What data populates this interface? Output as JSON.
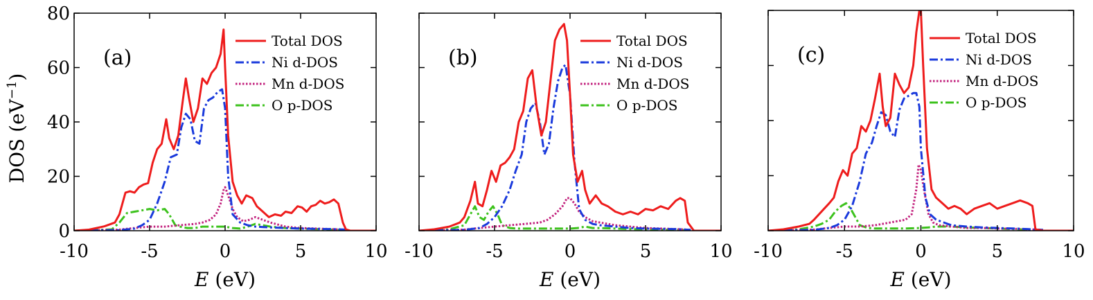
{
  "figure": {
    "y_axis_title_main": "DOS (eV",
    "y_axis_title_sup": "−1",
    "y_axis_title_end": ")"
  },
  "chart_data": [
    {
      "type": "line",
      "panel_label": "(a)",
      "xlabel_var": "E",
      "xlabel_unit": " (eV)",
      "ylabel": "DOS (eV−1)",
      "xlim": [
        -10,
        10
      ],
      "ylim": [
        0,
        80
      ],
      "xticks": [
        -10,
        -5,
        0,
        5,
        10
      ],
      "xtick_labels": [
        "-10",
        "-5",
        "0",
        "5",
        "10"
      ],
      "yticks": [
        0,
        20,
        40,
        60,
        80
      ],
      "ytick_labels": [
        "0",
        "20",
        "40",
        "60",
        "80"
      ],
      "series": [
        {
          "name": "Total DOS",
          "color": "#ee1c1c",
          "dash": "solid",
          "x": [
            -10,
            -9,
            -8,
            -7.3,
            -7,
            -6.6,
            -6.3,
            -6,
            -5.7,
            -5.4,
            -5.1,
            -4.8,
            -4.5,
            -4.2,
            -3.9,
            -3.7,
            -3.4,
            -3.1,
            -2.8,
            -2.6,
            -2.4,
            -2.1,
            -1.8,
            -1.5,
            -1.2,
            -0.9,
            -0.6,
            -0.3,
            -0.1,
            0,
            0.2,
            0.5,
            0.8,
            1.1,
            1.4,
            1.8,
            2.1,
            2.5,
            2.9,
            3.3,
            3.7,
            4,
            4.4,
            4.8,
            5.1,
            5.4,
            5.7,
            6,
            6.3,
            6.6,
            6.9,
            7.2,
            7.5,
            7.8,
            8,
            8.3,
            9,
            10
          ],
          "y": [
            0,
            0.4,
            1.6,
            3,
            6,
            14,
            14.5,
            14,
            16,
            17,
            17.5,
            25,
            30,
            32,
            41,
            34,
            30,
            35,
            48,
            56,
            49,
            40,
            45,
            56,
            54,
            58,
            60,
            65,
            74,
            60,
            35,
            18,
            13,
            10,
            13,
            12,
            9,
            7,
            5,
            6,
            5.5,
            7,
            6.5,
            9,
            8.5,
            7,
            9,
            9.5,
            11,
            10,
            10.5,
            11.5,
            10,
            3,
            0.5,
            0,
            0,
            0
          ]
        },
        {
          "name": "Ni d-DOS",
          "color": "#1a3adc",
          "dash": "dashdot",
          "x": [
            -10,
            -7,
            -6,
            -5.5,
            -5,
            -4.5,
            -4,
            -3.6,
            -3.2,
            -2.9,
            -2.6,
            -2.3,
            -2,
            -1.7,
            -1.4,
            -1.1,
            -0.8,
            -0.5,
            -0.2,
            0,
            0.2,
            0.5,
            1,
            1.5,
            2,
            3,
            4,
            5,
            6,
            7,
            8
          ],
          "y": [
            0,
            0.2,
            0.8,
            2,
            4,
            10,
            18,
            27,
            28,
            38,
            43,
            41,
            33,
            32,
            45,
            48,
            49,
            51,
            52,
            45,
            20,
            6,
            3,
            2,
            1.5,
            1.2,
            1,
            0.8,
            0.7,
            0.6,
            0.4
          ]
        },
        {
          "name": "Mn d-DOS",
          "color": "#c2217d",
          "dash": "dotted",
          "x": [
            -10,
            -7,
            -6,
            -5,
            -4,
            -3,
            -2,
            -1.5,
            -1,
            -0.6,
            -0.3,
            -0.1,
            0,
            0.2,
            0.5,
            0.8,
            1.2,
            1.6,
            2,
            2.5,
            3,
            4,
            5,
            6,
            7,
            8
          ],
          "y": [
            0,
            0.4,
            1,
            1.5,
            1.5,
            2,
            2.5,
            3,
            4,
            6,
            10,
            15,
            16,
            13,
            8,
            5,
            3.5,
            4,
            5,
            4,
            3,
            1.5,
            1,
            0.8,
            0.6,
            0.3
          ]
        },
        {
          "name": "O p-DOS",
          "color": "#3cc21c",
          "dash": "dashdot",
          "x": [
            -10,
            -7.5,
            -7,
            -6.5,
            -6,
            -5.5,
            -5,
            -4.5,
            -4,
            -3.7,
            -3.3,
            -3,
            -2.5,
            -2,
            -1.5,
            -1,
            -0.5,
            0,
            0.5,
            1,
            1.5,
            2,
            2.5,
            3,
            4,
            5,
            6,
            7,
            8
          ],
          "y": [
            0,
            0.5,
            3,
            6.5,
            7,
            7.5,
            8,
            7.5,
            8,
            6,
            2,
            1.5,
            1,
            1,
            1.5,
            1.5,
            1.5,
            1.5,
            1,
            0.8,
            1.5,
            2.5,
            2,
            1.5,
            1,
            0.8,
            0.6,
            0.4,
            0.2
          ]
        }
      ]
    },
    {
      "type": "line",
      "panel_label": "(b)",
      "xlabel_var": "E",
      "xlabel_unit": " (eV)",
      "ylabel": "",
      "xlim": [
        -10,
        10
      ],
      "ylim": [
        0,
        80
      ],
      "xticks": [
        -10,
        -5,
        0,
        5,
        10
      ],
      "xtick_labels": [
        "-10",
        "-5",
        "0",
        "5",
        "10"
      ],
      "yticks": [
        0,
        20,
        40,
        60,
        80
      ],
      "ytick_labels": [],
      "series": [
        {
          "name": "Total DOS",
          "color": "#ee1c1c",
          "dash": "solid",
          "x": [
            -10,
            -9,
            -8,
            -7.3,
            -7,
            -6.6,
            -6.3,
            -6.1,
            -5.8,
            -5.5,
            -5.2,
            -4.9,
            -4.6,
            -4.3,
            -4,
            -3.7,
            -3.4,
            -3.1,
            -2.8,
            -2.5,
            -2.2,
            -1.9,
            -1.6,
            -1.3,
            -1,
            -0.7,
            -0.4,
            -0.2,
            0,
            0.2,
            0.5,
            0.8,
            1,
            1.3,
            1.7,
            2.1,
            2.5,
            3,
            3.5,
            4,
            4.5,
            5,
            5.5,
            6,
            6.5,
            7,
            7.3,
            7.6,
            7.8,
            8.2,
            9,
            10
          ],
          "y": [
            0,
            0.5,
            1.5,
            3,
            5,
            11,
            18,
            10,
            9,
            15,
            22,
            18,
            24,
            25,
            27,
            30,
            40,
            44,
            56,
            59,
            45,
            35,
            40,
            55,
            70,
            74,
            76,
            70,
            50,
            28,
            18,
            22,
            15,
            10,
            13,
            10,
            9,
            7,
            6,
            7,
            6,
            8,
            7.5,
            9,
            8,
            11,
            12,
            11,
            3,
            0,
            0,
            0
          ]
        },
        {
          "name": "Ni d-DOS",
          "color": "#1a3adc",
          "dash": "dashdot",
          "x": [
            -10,
            -7,
            -6,
            -5.5,
            -5,
            -4.5,
            -4,
            -3.6,
            -3.2,
            -2.9,
            -2.6,
            -2.3,
            -2,
            -1.7,
            -1.4,
            -1.1,
            -0.8,
            -0.5,
            -0.3,
            0,
            0.3,
            0.6,
            1,
            1.5,
            2,
            3,
            4,
            5,
            6,
            7,
            8
          ],
          "y": [
            0,
            0.3,
            1,
            2.5,
            5,
            9,
            15,
            22,
            28,
            40,
            45,
            47,
            40,
            28,
            32,
            45,
            55,
            60,
            61,
            50,
            25,
            8,
            4,
            2.5,
            2,
            1.5,
            1,
            0.8,
            0.7,
            0.6,
            0.3
          ]
        },
        {
          "name": "Mn d-DOS",
          "color": "#c2217d",
          "dash": "dotted",
          "x": [
            -10,
            -7,
            -6,
            -5,
            -4,
            -3,
            -2,
            -1.5,
            -1,
            -0.5,
            -0.2,
            0,
            0.3,
            0.6,
            1,
            1.5,
            2,
            3,
            4,
            5,
            6,
            7,
            8
          ],
          "y": [
            0,
            0.4,
            1,
            1.5,
            2,
            2.5,
            3,
            4,
            6,
            9,
            12,
            12,
            10,
            7,
            5,
            3.5,
            3,
            2,
            1.5,
            1,
            0.8,
            0.6,
            0.3
          ]
        },
        {
          "name": "O p-DOS",
          "color": "#3cc21c",
          "dash": "dashdot",
          "x": [
            -10,
            -8,
            -7,
            -6.6,
            -6.3,
            -6,
            -5.7,
            -5.4,
            -5.1,
            -4.8,
            -4.5,
            -4,
            -3.5,
            -3,
            -2,
            -1,
            0,
            0.5,
            1,
            1.5,
            2,
            3,
            4,
            5,
            6,
            7,
            8
          ],
          "y": [
            0,
            0.5,
            2,
            6,
            9,
            5,
            4,
            7,
            9,
            6,
            2,
            1,
            0.8,
            0.8,
            0.8,
            0.8,
            0.8,
            1,
            1.5,
            1,
            1,
            0.8,
            0.6,
            0.5,
            0.4,
            0.3,
            0.2
          ]
        }
      ]
    },
    {
      "type": "line",
      "panel_label": "(c)",
      "xlabel_var": "E",
      "xlabel_unit": " (eV)",
      "ylabel": "",
      "xlim": [
        -10,
        10
      ],
      "ylim": [
        0,
        80
      ],
      "xticks": [
        -10,
        -5,
        0,
        5,
        10
      ],
      "xtick_labels": [
        "-10",
        "-5",
        "0",
        "5",
        "10"
      ],
      "yticks": [
        0,
        20,
        40,
        60,
        80
      ],
      "ytick_labels": [],
      "series": [
        {
          "name": "Total DOS",
          "color": "#ee1c1c",
          "dash": "solid",
          "x": [
            -10,
            -9,
            -8,
            -7.3,
            -7,
            -6.5,
            -6,
            -5.7,
            -5.4,
            -5.1,
            -4.8,
            -4.5,
            -4.2,
            -3.9,
            -3.6,
            -3.3,
            -3,
            -2.7,
            -2.5,
            -2.3,
            -2,
            -1.7,
            -1.4,
            -1.1,
            -0.8,
            -0.5,
            -0.3,
            -0.1,
            0,
            0.15,
            0.4,
            0.7,
            1,
            1.4,
            1.8,
            2.2,
            2.6,
            3,
            3.5,
            4,
            4.5,
            5,
            5.5,
            6,
            6.5,
            7,
            7.3,
            7.5,
            8,
            9,
            10
          ],
          "y": [
            0,
            0.5,
            1.5,
            2.5,
            4,
            7,
            10,
            12,
            18,
            22,
            20,
            28,
            30,
            38,
            36,
            40,
            48,
            57,
            45,
            38,
            41,
            57,
            53,
            50,
            52,
            60,
            72,
            80,
            80,
            60,
            30,
            15,
            12,
            10,
            8,
            9,
            8,
            6,
            8,
            9,
            10,
            8,
            9,
            10,
            11,
            10,
            9,
            0.5,
            0,
            0,
            0
          ]
        },
        {
          "name": "Ni d-DOS",
          "color": "#1a3adc",
          "dash": "dashdot",
          "x": [
            -10,
            -7,
            -6,
            -5.5,
            -5,
            -4.5,
            -4,
            -3.6,
            -3.2,
            -2.9,
            -2.6,
            -2.3,
            -2,
            -1.7,
            -1.4,
            -1.1,
            -0.8,
            -0.5,
            -0.3,
            -0.1,
            0,
            0.3,
            0.6,
            1,
            1.5,
            2,
            3,
            4,
            5,
            6,
            7,
            8
          ],
          "y": [
            0,
            0.3,
            1,
            2,
            4,
            9,
            18,
            28,
            32,
            38,
            43,
            42,
            36,
            34,
            44,
            48,
            49,
            50,
            50,
            45,
            30,
            12,
            6,
            4,
            3,
            2,
            1.5,
            1.2,
            1,
            0.8,
            0.6,
            0.3
          ]
        },
        {
          "name": "Mn d-DOS",
          "color": "#c2217d",
          "dash": "dotted",
          "x": [
            -10,
            -7,
            -6,
            -5,
            -4,
            -3,
            -2,
            -1.5,
            -1,
            -0.6,
            -0.3,
            -0.15,
            0,
            0.2,
            0.5,
            0.8,
            1.2,
            2,
            3,
            4,
            5,
            6,
            7,
            8
          ],
          "y": [
            0,
            0.4,
            1,
            1.5,
            1.5,
            2,
            3,
            3.5,
            4,
            6,
            15,
            24,
            22,
            15,
            6,
            3,
            2,
            1.5,
            1,
            1,
            0.8,
            0.7,
            0.5,
            0.3
          ]
        },
        {
          "name": "O p-DOS",
          "color": "#3cc21c",
          "dash": "dashdot",
          "x": [
            -10,
            -8,
            -7,
            -6.5,
            -6,
            -5.6,
            -5.2,
            -4.9,
            -4.6,
            -4.3,
            -4,
            -3.5,
            -3,
            -2,
            -1,
            0,
            0.5,
            1,
            2,
            3,
            4,
            5,
            6,
            7,
            8
          ],
          "y": [
            0,
            0.5,
            1.5,
            2.5,
            4,
            7,
            9,
            10,
            8,
            5,
            2,
            1,
            0.8,
            0.8,
            0.8,
            1,
            1.2,
            1.5,
            1.5,
            1.2,
            1,
            0.8,
            0.6,
            0.4,
            0.2
          ]
        }
      ]
    }
  ]
}
